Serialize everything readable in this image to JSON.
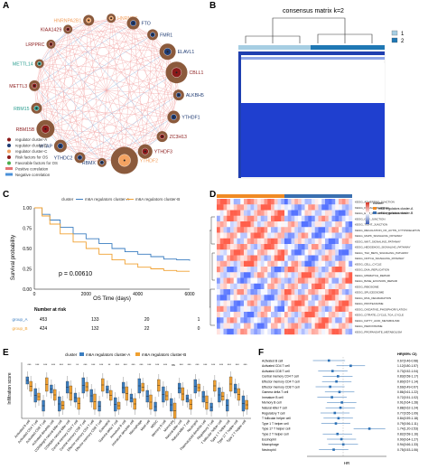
{
  "panels": {
    "A": {
      "label": "A",
      "nodes": [
        {
          "name": "HNRNPA2B1",
          "color": "#f4a261"
        },
        {
          "name": "HNRNPC",
          "color": "#f4a261"
        },
        {
          "name": "FTO",
          "color": "#1f3b73"
        },
        {
          "name": "FMR1",
          "color": "#1f3b73"
        },
        {
          "name": "ELAVL1",
          "color": "#1f3b73"
        },
        {
          "name": "CBLL1",
          "color": "#8b1a1a"
        },
        {
          "name": "ALKBH5",
          "color": "#1f3b73"
        },
        {
          "name": "YTHDF1",
          "color": "#1f3b73"
        },
        {
          "name": "ZC3H13",
          "color": "#8b1a1a"
        },
        {
          "name": "YTHDF3",
          "color": "#8b1a1a"
        },
        {
          "name": "YTHDF2",
          "color": "#f4a261"
        },
        {
          "name": "RBMX",
          "color": "#1f3b73"
        },
        {
          "name": "YTHDC2",
          "color": "#1f3b73"
        },
        {
          "name": "WTAP",
          "color": "#1f3b73"
        },
        {
          "name": "RBM15B",
          "color": "#8b1a1a"
        },
        {
          "name": "RBM15",
          "color": "#2a9d8f"
        },
        {
          "name": "METTL3",
          "color": "#8b1a1a"
        },
        {
          "name": "METTL14",
          "color": "#2a9d8f"
        },
        {
          "name": "LRPPRC",
          "color": "#8b1a1a"
        },
        {
          "name": "KIAA1429",
          "color": "#8b1a1a"
        }
      ],
      "legend": [
        {
          "text": "regulator cluster-A",
          "color": "#8b1a1a"
        },
        {
          "text": "regulator cluster-B",
          "color": "#1f3b73"
        },
        {
          "text": "regulator cluster-C",
          "color": "#f4a261"
        },
        {
          "text": "Risk factors for OS",
          "color": "#8b1a1a"
        },
        {
          "text": "Favorable factors for OS",
          "color": "#4cae4c"
        },
        {
          "text": "Positive correlation",
          "color": "#e57373"
        },
        {
          "text": "Negative correlation",
          "color": "#4a90d9"
        }
      ]
    },
    "B": {
      "label": "B",
      "title": "consensus matrix k=2",
      "legend": [
        {
          "text": "1",
          "color": "#a6cee3"
        },
        {
          "text": "2",
          "color": "#1f78b4"
        }
      ]
    },
    "C": {
      "label": "C",
      "legend_title": "cluster",
      "legend_items": [
        {
          "text": "m6A regulators cluster-A",
          "color": "#3a7dc0"
        },
        {
          "text": "m6A regulators cluster-B",
          "color": "#f0a030"
        }
      ],
      "ylabel": "Survival probability",
      "xlabel": "OS Time (days)",
      "pvalue": "p = 0.00610",
      "yticks": [
        "1.00",
        "0.75",
        "0.50",
        "0.25",
        "0.00"
      ],
      "xticks": [
        "0",
        "2000",
        "4000",
        "6000"
      ],
      "risk_title": "Number at risk",
      "risk_rows": [
        {
          "name": "group_A",
          "values": [
            "453",
            "133",
            "20",
            "1"
          ]
        },
        {
          "name": "group_B",
          "values": [
            "424",
            "132",
            "22",
            "0"
          ]
        }
      ]
    },
    "D": {
      "label": "D",
      "rows": [
        "KEGG_ADHERENS_JUNCTION",
        "KEGG_FOCAL_ADHESION",
        "KEGG_ECM_RECEPTOR_INTERACTION",
        "KEGG_GAP_JUNCTION",
        "KEGG_TIGHT_JUNCTION",
        "KEGG_REGULATION_OF_ACTIN_CYTOSKELETON",
        "KEGG_MAPK_SIGNALING_PATHWAY",
        "KEGG_WNT_SIGNALING_PATHWAY",
        "KEGG_HEDGEHOG_SIGNALING_PATHWAY",
        "KEGG_TGF_BETA_SIGNALING_PATHWAY",
        "KEGG_NOTCH_SIGNALING_PATHWAY",
        "KEGG_CELL_CYCLE",
        "KEGG_DNA_REPLICATION",
        "KEGG_MISMATCH_REPAIR",
        "KEGG_BASE_EXCISION_REPAIR",
        "KEGG_RIBOSOME",
        "KEGG_SPLICEOSOME",
        "KEGG_RNA_DEGRADATION",
        "KEGG_PROTEASOME",
        "KEGG_OXIDATIVE_PHOSPHORYLATION",
        "KEGG_CITRATE_CYCLE_TCA_CYCLE",
        "KEGG_FATTY_ACID_METABOLISM",
        "KEGG_PEROXISOME",
        "KEGG_PROPANOATE_METABOLISM"
      ],
      "legend_title": "cluster",
      "legend_items": [
        {
          "text": "m6A regulators cluster-A",
          "color": "#f08a24"
        },
        {
          "text": "m6A regulators cluster-B",
          "color": "#3a6fb0"
        }
      ]
    },
    "E": {
      "label": "E",
      "legend_title": "cluster",
      "legend_items": [
        {
          "text": "m6A regulators cluster-A",
          "color": "#3a7dc0"
        },
        {
          "text": "m6A regulators cluster-B",
          "color": "#f0a030"
        }
      ],
      "ylabel": "Infiltration score",
      "categories": [
        "Activated B cell",
        "Activated CD4 T cell",
        "Activated CD8 T cell",
        "Activated dendritic cell",
        "CD56bright natural killer cell",
        "CD56dim natural killer cell",
        "Central memory CD4 T cell",
        "Central memory CD8 T cell",
        "Effector memory CD4 T cell",
        "Effector memory CD8 T cell",
        "Eosinophil",
        "Gamma delta T cell",
        "Immature B cell",
        "Immature dendritic cell",
        "Macrophage",
        "Mast cell",
        "MDSC",
        "Memory B cell",
        "Monocyte",
        "Natural killer cell",
        "Natural killer T cell",
        "Neutrophil",
        "Plasmacytoid dendritic cell",
        "Regulatory T cell",
        "T follicular helper cell",
        "Type 1 T helper cell",
        "Type 17 T helper cell",
        "Type 2 T helper cell"
      ],
      "signif": [
        "***",
        "***",
        "***",
        "***",
        "***",
        "***",
        "**",
        "***",
        "***",
        "***",
        "**",
        "***",
        "***",
        "***",
        "***",
        "***",
        "***",
        "***",
        "ns",
        "***",
        "***",
        "***",
        "***",
        "***",
        "***",
        "***",
        "***",
        "***"
      ]
    },
    "F": {
      "label": "F",
      "header_right": "HR(95% CI)",
      "rows": [
        {
          "name": "Activated B cell",
          "hr": "0.67(0.46-0.98)"
        },
        {
          "name": "Activated CD4 T cell",
          "hr": "1.12(0.80-1.57)"
        },
        {
          "name": "Activated CD8 T cell",
          "hr": "0.73(0.52-1.04)"
        },
        {
          "name": "Central memory CD4 T cell",
          "hr": "0.83(0.58-1.17)"
        },
        {
          "name": "Effector memory CD4 T cell",
          "hr": "0.80(0.57-1.14)"
        },
        {
          "name": "Effector memory CD8 T cell",
          "hr": "0.69(0.49-0.97)"
        },
        {
          "name": "Gamma delta T cell",
          "hr": "0.86(0.61-1.22)"
        },
        {
          "name": "Immature B cell",
          "hr": "0.72(0.51-1.02)"
        },
        {
          "name": "Memory B cell",
          "hr": "0.91(0.64-1.28)"
        },
        {
          "name": "Natural killer T cell",
          "hr": "0.88(0.62-1.24)"
        },
        {
          "name": "Regulatory T cell",
          "hr": "0.77(0.55-1.09)"
        },
        {
          "name": "T follicular helper cell",
          "hr": "0.84(0.59-1.18)"
        },
        {
          "name": "Type 1 T helper cell",
          "hr": "0.79(0.56-1.11)"
        },
        {
          "name": "Type 17 T helper cell",
          "hr": "1.74(1.20-2.53)"
        },
        {
          "name": "Type 2 T helper cell",
          "hr": "0.82(0.58-1.16)"
        },
        {
          "name": "Eosinophil",
          "hr": "0.90(0.64-1.27)"
        },
        {
          "name": "Macrophage",
          "hr": "0.94(0.66-1.33)"
        },
        {
          "name": "Neutrophil",
          "hr": "0.75(0.53-1.06)"
        }
      ],
      "xlabel": "HR"
    }
  },
  "chart_data": [
    {
      "type": "line",
      "panel": "C",
      "xlabel": "OS Time (days)",
      "ylabel": "Survival probability",
      "xlim": [
        0,
        6000
      ],
      "ylim": [
        0,
        1
      ],
      "series": [
        {
          "name": "m6A regulators cluster-A",
          "x": [
            0,
            300,
            600,
            1000,
            1500,
            2000,
            2500,
            3000,
            3500,
            4000,
            4500,
            5000,
            5500,
            6000
          ],
          "y": [
            1.0,
            0.92,
            0.85,
            0.76,
            0.68,
            0.62,
            0.56,
            0.5,
            0.46,
            0.43,
            0.4,
            0.37,
            0.36,
            0.35
          ]
        },
        {
          "name": "m6A regulators cluster-B",
          "x": [
            0,
            300,
            600,
            1000,
            1500,
            2000,
            2500,
            3000,
            3500,
            4000,
            4500,
            5000,
            5500,
            6000
          ],
          "y": [
            1.0,
            0.9,
            0.8,
            0.68,
            0.58,
            0.5,
            0.43,
            0.36,
            0.31,
            0.27,
            0.25,
            0.23,
            0.22,
            0.22
          ]
        }
      ]
    }
  ]
}
